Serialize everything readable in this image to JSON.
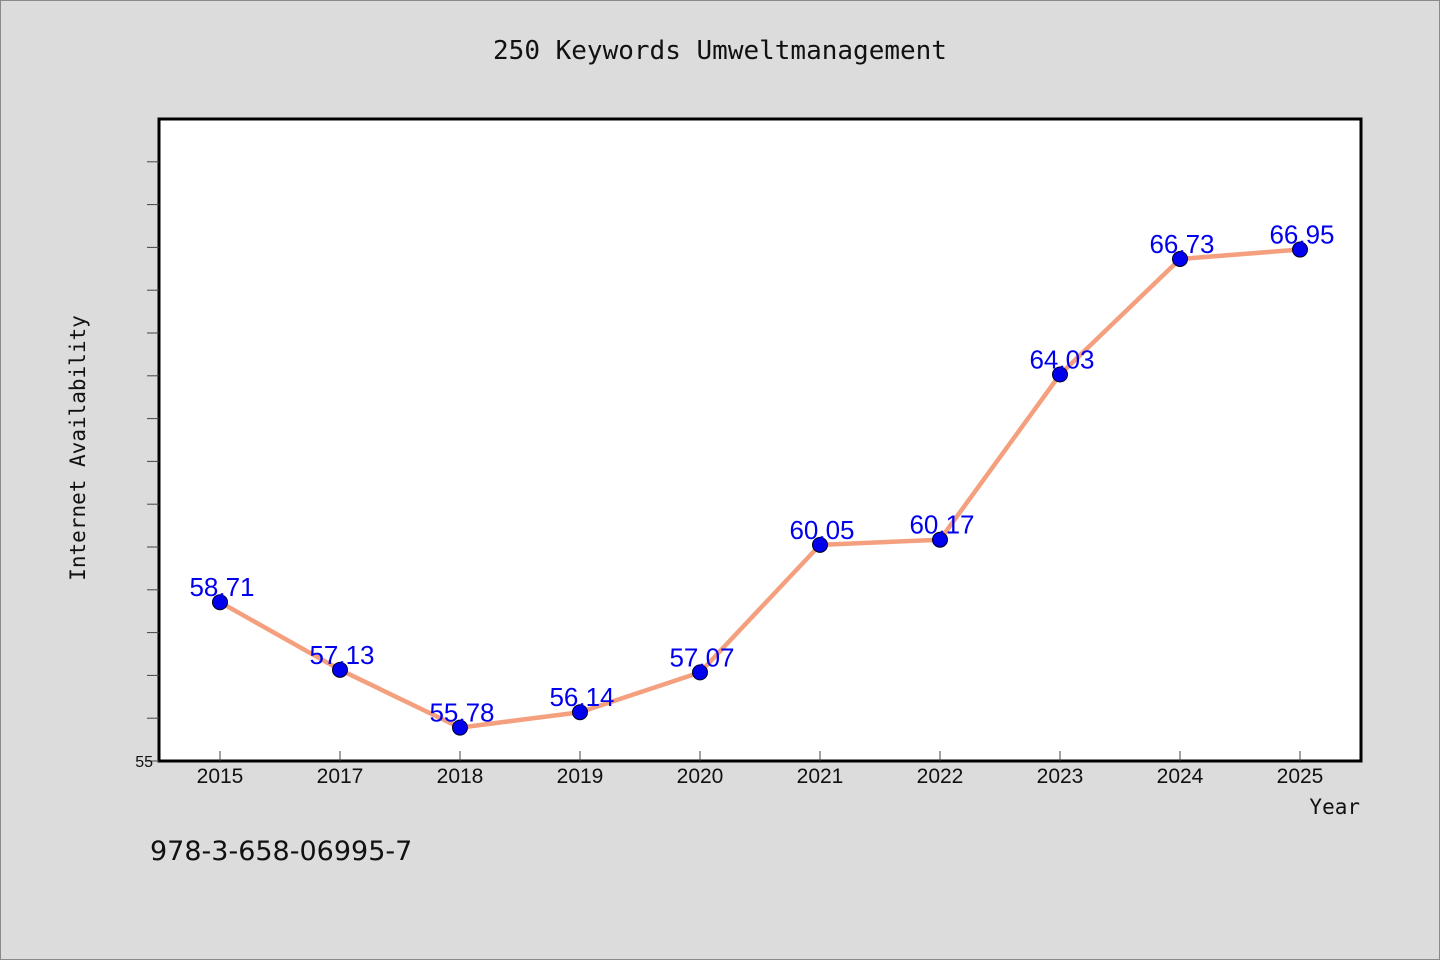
{
  "chart_data": {
    "type": "line",
    "title": "250 Keywords Umweltmanagement",
    "xlabel": "Year",
    "ylabel": "Internet Availability",
    "categories": [
      "2015",
      "2017",
      "2018",
      "2019",
      "2020",
      "2021",
      "2022",
      "2023",
      "2024",
      "2025"
    ],
    "series": [
      {
        "values": [
          58.71,
          57.13,
          55.78,
          56.14,
          57.07,
          60.05,
          60.17,
          64.03,
          66.73,
          66.95
        ],
        "line_color": "#f4a07f",
        "marker_color": "#0000ee"
      }
    ],
    "data_labels": [
      "58.71",
      "57.13",
      "55.78",
      "56.14",
      "57.07",
      "60.05",
      "60.17",
      "64.03",
      "66.73",
      "66.95"
    ],
    "ylim": [
      55,
      70
    ],
    "y_tick_labels": [
      "55"
    ],
    "grid": false,
    "legend": "none"
  },
  "footer": {
    "isbn": "978-3-658-06995-7"
  },
  "colors": {
    "background": "#dcdcdc",
    "plot_background": "#ffffff",
    "line": "#f4a07f",
    "marker": "#0000ee",
    "data_label": "#0000ee"
  }
}
